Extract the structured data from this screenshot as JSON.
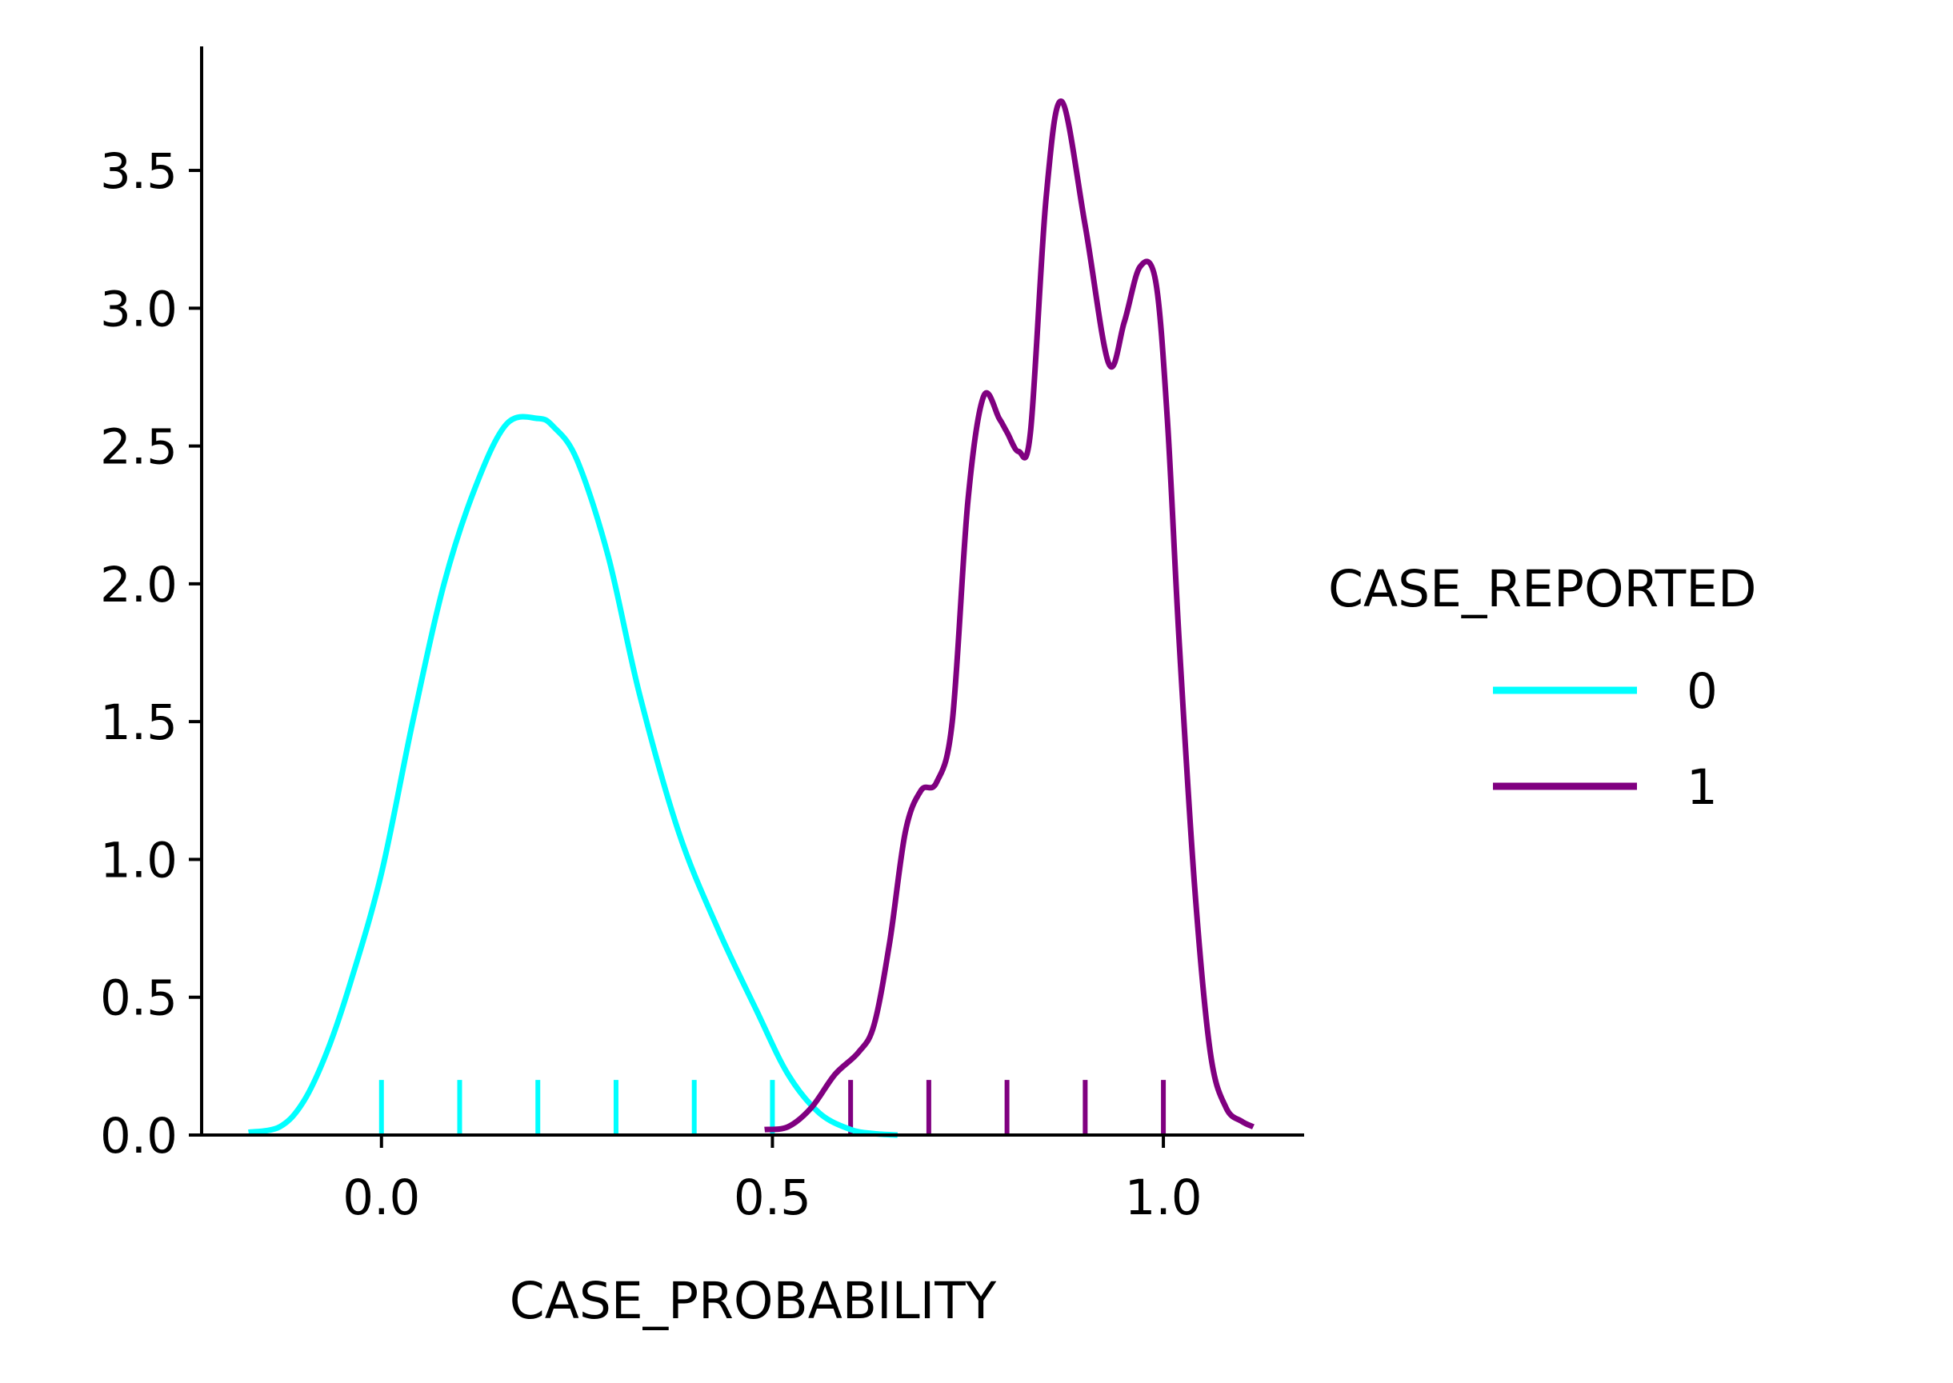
{
  "chart_data": {
    "type": "line",
    "subtype": "kde-with-rug",
    "title": "",
    "xlabel": "CASE_PROBABILITY",
    "ylabel": "",
    "xlim": [
      -0.23,
      1.18
    ],
    "ylim": [
      0,
      3.95
    ],
    "xticks": [
      {
        "value": 0.0,
        "label": "0.0"
      },
      {
        "value": 0.5,
        "label": "0.5"
      },
      {
        "value": 1.0,
        "label": "1.0"
      }
    ],
    "yticks": [
      {
        "value": 0.0,
        "label": "0.0"
      },
      {
        "value": 0.5,
        "label": "0.5"
      },
      {
        "value": 1.0,
        "label": "1.0"
      },
      {
        "value": 1.5,
        "label": "1.5"
      },
      {
        "value": 2.0,
        "label": "2.0"
      },
      {
        "value": 2.5,
        "label": "2.5"
      },
      {
        "value": 3.0,
        "label": "3.0"
      },
      {
        "value": 3.5,
        "label": "3.5"
      }
    ],
    "grid": false,
    "legend": {
      "title": "CASE_REPORTED",
      "placement": "right"
    },
    "series": [
      {
        "name": "0",
        "color": "#00ffff",
        "x": [
          -0.17,
          -0.13,
          -0.1,
          -0.07,
          -0.04,
          0.0,
          0.04,
          0.08,
          0.12,
          0.16,
          0.2,
          0.22,
          0.25,
          0.29,
          0.33,
          0.38,
          0.43,
          0.48,
          0.52,
          0.56,
          0.6,
          0.63,
          0.66
        ],
        "y": [
          0.01,
          0.03,
          0.12,
          0.3,
          0.55,
          0.95,
          1.5,
          2.0,
          2.35,
          2.58,
          2.6,
          2.57,
          2.45,
          2.1,
          1.6,
          1.1,
          0.75,
          0.45,
          0.22,
          0.08,
          0.02,
          0.005,
          0.0
        ],
        "rug": [
          0.0,
          0.1,
          0.2,
          0.3,
          0.4,
          0.5
        ]
      },
      {
        "name": "1",
        "color": "#800080",
        "x": [
          0.49,
          0.52,
          0.55,
          0.58,
          0.61,
          0.63,
          0.65,
          0.67,
          0.69,
          0.71,
          0.73,
          0.75,
          0.77,
          0.79,
          0.8,
          0.815,
          0.83,
          0.85,
          0.87,
          0.9,
          0.93,
          0.95,
          0.97,
          0.99,
          1.005,
          1.02,
          1.04,
          1.06,
          1.08,
          1.1,
          1.115
        ],
        "y": [
          0.02,
          0.03,
          0.1,
          0.22,
          0.3,
          0.4,
          0.7,
          1.1,
          1.25,
          1.28,
          1.5,
          2.3,
          2.68,
          2.6,
          2.55,
          2.48,
          2.55,
          3.4,
          3.75,
          3.3,
          2.8,
          2.95,
          3.15,
          3.1,
          2.6,
          1.8,
          0.9,
          0.3,
          0.1,
          0.05,
          0.03
        ],
        "rug": [
          0.6,
          0.7,
          0.8,
          0.9,
          1.0
        ]
      }
    ]
  }
}
